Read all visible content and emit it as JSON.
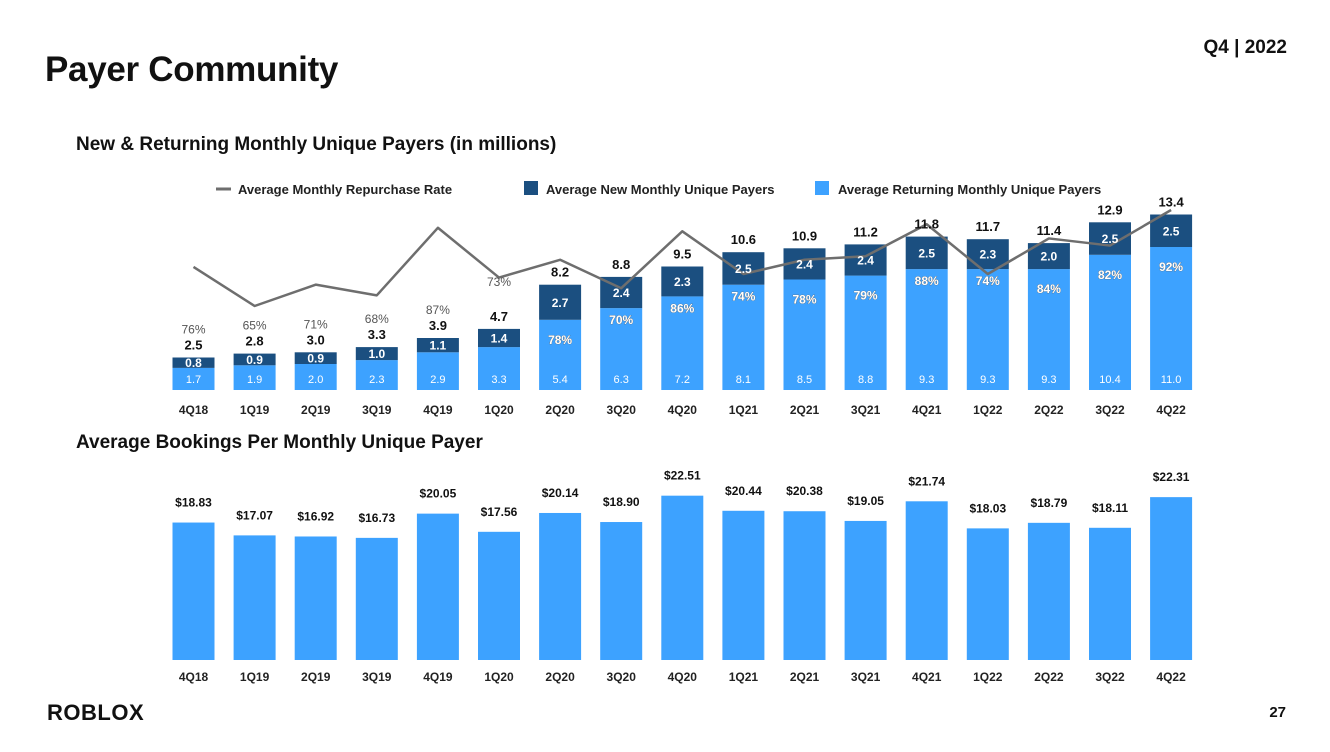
{
  "page": {
    "title": "Payer Community",
    "date": "Q4 | 2022",
    "logo": "ROBLOX",
    "page_number": "27"
  },
  "colors": {
    "new_payers": "#1b4f80",
    "returning_payers": "#3da2ff",
    "repurchase_line": "#6e6e6e",
    "bookings_bars": "#3da2ff"
  },
  "chart_data": [
    {
      "type": "bar",
      "stacked": true,
      "title": "New & Returning Monthly Unique Payers (in millions)",
      "categories": [
        "4Q18",
        "1Q19",
        "2Q19",
        "3Q19",
        "4Q19",
        "1Q20",
        "2Q20",
        "3Q20",
        "4Q20",
        "1Q21",
        "2Q21",
        "3Q21",
        "4Q21",
        "1Q22",
        "2Q22",
        "3Q22",
        "4Q22"
      ],
      "series": [
        {
          "name": "Average Returning Monthly Unique Payers",
          "values": [
            "1.7",
            "1.9",
            "2.0",
            "2.3",
            "2.9",
            "3.3",
            "5.4",
            "6.3",
            "7.2",
            "8.1",
            "8.5",
            "8.8",
            "9.3",
            "9.3",
            "9.3",
            "10.4",
            "11.0"
          ]
        },
        {
          "name": "Average New Monthly Unique Payers",
          "values": [
            "0.8",
            "0.9",
            "0.9",
            "1.0",
            "1.1",
            "1.4",
            "2.7",
            "2.4",
            "2.3",
            "2.5",
            "2.4",
            "2.4",
            "2.5",
            "2.3",
            "2.0",
            "2.5",
            "2.5"
          ]
        }
      ],
      "totals": [
        "2.5",
        "2.8",
        "3.0",
        "3.3",
        "3.9",
        "4.7",
        "8.2",
        "8.8",
        "9.5",
        "10.6",
        "10.9",
        "11.2",
        "11.8",
        "11.7",
        "11.4",
        "12.9",
        "13.4"
      ],
      "line": {
        "name": "Average Monthly Repurchase Rate",
        "values": [
          76,
          65,
          71,
          68,
          87,
          73,
          78,
          70,
          86,
          74,
          78,
          79,
          88,
          74,
          84,
          82,
          92
        ],
        "labels": [
          "76%",
          "65%",
          "71%",
          "68%",
          "87%",
          "73%",
          "78%",
          "70%",
          "86%",
          "74%",
          "78%",
          "79%",
          "88%",
          "74%",
          "84%",
          "82%",
          "92%"
        ]
      },
      "ylim": [
        0,
        14
      ]
    },
    {
      "type": "bar",
      "title": "Average Bookings Per Monthly Unique Payer",
      "categories": [
        "4Q18",
        "1Q19",
        "2Q19",
        "3Q19",
        "4Q19",
        "1Q20",
        "2Q20",
        "3Q20",
        "4Q20",
        "1Q21",
        "2Q21",
        "3Q21",
        "4Q21",
        "1Q22",
        "2Q22",
        "3Q22",
        "4Q22"
      ],
      "values": [
        18.83,
        17.07,
        16.92,
        16.73,
        20.05,
        17.56,
        20.14,
        18.9,
        22.51,
        20.44,
        20.38,
        19.05,
        21.74,
        18.03,
        18.79,
        18.11,
        22.31
      ],
      "labels": [
        "$18.83",
        "$17.07",
        "$16.92",
        "$16.73",
        "$20.05",
        "$17.56",
        "$20.14",
        "$18.90",
        "$22.51",
        "$20.44",
        "$20.38",
        "$19.05",
        "$21.74",
        "$18.03",
        "$18.79",
        "$18.11",
        "$22.31"
      ],
      "ylim": [
        0,
        23
      ]
    }
  ]
}
